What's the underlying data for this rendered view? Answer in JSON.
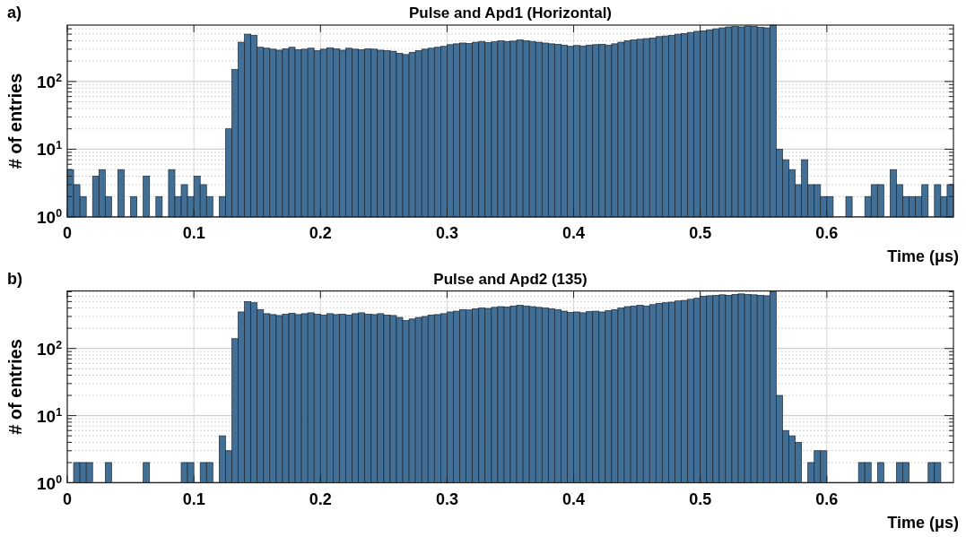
{
  "chart_data": [
    {
      "type": "histogram",
      "title": "Pulse and Apd1 (Horizontal)",
      "xlabel": "Time (μs)",
      "ylabel": "# of entries",
      "annotations": [
        "a)"
      ],
      "color": "#426f95",
      "log": true,
      "grid": true,
      "bins": [
        0,
        0.005,
        0.01,
        0.015,
        0.02,
        0.025,
        0.03,
        0.035,
        0.04,
        0.045,
        0.05,
        0.055,
        0.06,
        0.065,
        0.07,
        0.075,
        0.08,
        0.085,
        0.09,
        0.095,
        0.1,
        0.105,
        0.11,
        0.115,
        0.12,
        0.125,
        0.13,
        0.135,
        0.14,
        0.145,
        0.15,
        0.155,
        0.16,
        0.165,
        0.17,
        0.175,
        0.18,
        0.185,
        0.19,
        0.195,
        0.2,
        0.205,
        0.21,
        0.215,
        0.22,
        0.225,
        0.23,
        0.235,
        0.24,
        0.245,
        0.25,
        0.255,
        0.26,
        0.265,
        0.27,
        0.275,
        0.28,
        0.285,
        0.29,
        0.295,
        0.3,
        0.305,
        0.31,
        0.315,
        0.32,
        0.325,
        0.33,
        0.335,
        0.34,
        0.345,
        0.35,
        0.355,
        0.36,
        0.365,
        0.37,
        0.375,
        0.38,
        0.385,
        0.39,
        0.395,
        0.4,
        0.405,
        0.41,
        0.415,
        0.42,
        0.425,
        0.43,
        0.435,
        0.44,
        0.445,
        0.45,
        0.455,
        0.46,
        0.465,
        0.47,
        0.475,
        0.48,
        0.485,
        0.49,
        0.495,
        0.5,
        0.505,
        0.51,
        0.515,
        0.52,
        0.525,
        0.53,
        0.535,
        0.54,
        0.545,
        0.55,
        0.555,
        0.56,
        0.565,
        0.57,
        0.575,
        0.58,
        0.585,
        0.59,
        0.595,
        0.6,
        0.605,
        0.61,
        0.615,
        0.62,
        0.625,
        0.63,
        0.635,
        0.64,
        0.645,
        0.65,
        0.655,
        0.66,
        0.665,
        0.67,
        0.675,
        0.68,
        0.685,
        0.69,
        0.695,
        0.7
      ],
      "values": [
        5,
        3,
        2,
        null,
        4,
        5,
        2,
        null,
        5,
        null,
        2,
        null,
        4,
        null,
        2,
        null,
        5,
        2,
        3,
        2,
        4,
        3,
        2,
        null,
        2,
        20,
        150,
        380,
        500,
        480,
        320,
        310,
        300,
        290,
        305,
        320,
        295,
        300,
        310,
        285,
        300,
        315,
        305,
        290,
        310,
        300,
        295,
        305,
        300,
        290,
        285,
        280,
        260,
        250,
        270,
        285,
        300,
        310,
        320,
        330,
        350,
        360,
        370,
        365,
        380,
        390,
        375,
        385,
        400,
        390,
        395,
        410,
        400,
        390,
        380,
        370,
        360,
        355,
        345,
        330,
        340,
        335,
        345,
        350,
        355,
        345,
        360,
        380,
        400,
        410,
        420,
        430,
        440,
        460,
        470,
        480,
        500,
        510,
        530,
        550,
        560,
        580,
        600,
        620,
        640,
        650,
        640,
        660,
        650,
        630,
        620,
        680,
        10,
        7,
        5,
        3,
        7,
        3,
        3,
        2,
        2,
        null,
        null,
        2,
        null,
        null,
        2,
        3,
        3,
        null,
        5,
        3,
        2,
        2,
        2,
        3,
        null,
        3,
        2,
        3
      ],
      "xlim": [
        0,
        0.7
      ],
      "ylim": [
        1,
        680
      ],
      "xticks": [
        0,
        0.1,
        0.2,
        0.3,
        0.4,
        0.5,
        0.6
      ],
      "yticks": [
        {
          "value": 1,
          "label": "10$^{0}$"
        },
        {
          "value": 2,
          "label": null
        },
        {
          "value": 3,
          "label": null
        },
        {
          "value": 4,
          "label": null
        },
        {
          "value": 5,
          "label": null
        },
        {
          "value": 6,
          "label": null
        },
        {
          "value": 7,
          "label": null
        },
        {
          "value": 8,
          "label": null
        },
        {
          "value": 9,
          "label": null
        },
        {
          "value": 10,
          "label": "10$^{1}$"
        },
        {
          "value": 20,
          "label": null
        },
        {
          "value": 30,
          "label": null
        },
        {
          "value": 40,
          "label": null
        },
        {
          "value": 50,
          "label": null
        },
        {
          "value": 60,
          "label": null
        },
        {
          "value": 70,
          "label": null
        },
        {
          "value": 80,
          "label": null
        },
        {
          "value": 90,
          "label": null
        },
        {
          "value": 100,
          "label": "10$^{2}$"
        },
        {
          "value": 200,
          "label": null
        },
        {
          "value": 300,
          "label": null
        },
        {
          "value": 400,
          "label": null
        },
        {
          "value": 500,
          "label": null
        },
        {
          "value": 600,
          "label": null
        }
      ]
    },
    {
      "type": "histogram",
      "title": "Pulse and Apd2 (135)",
      "xlabel": "Time (μs)",
      "ylabel": "# of entries",
      "annotations": [
        "b)"
      ],
      "color": "#426f95",
      "log": true,
      "grid": true,
      "bins": [
        0,
        0.005,
        0.01,
        0.015,
        0.02,
        0.025,
        0.03,
        0.035,
        0.04,
        0.045,
        0.05,
        0.055,
        0.06,
        0.065,
        0.07,
        0.075,
        0.08,
        0.085,
        0.09,
        0.095,
        0.1,
        0.105,
        0.11,
        0.115,
        0.12,
        0.125,
        0.13,
        0.135,
        0.14,
        0.145,
        0.15,
        0.155,
        0.16,
        0.165,
        0.17,
        0.175,
        0.18,
        0.185,
        0.19,
        0.195,
        0.2,
        0.205,
        0.21,
        0.215,
        0.22,
        0.225,
        0.23,
        0.235,
        0.24,
        0.245,
        0.25,
        0.255,
        0.26,
        0.265,
        0.27,
        0.275,
        0.28,
        0.285,
        0.29,
        0.295,
        0.3,
        0.305,
        0.31,
        0.315,
        0.32,
        0.325,
        0.33,
        0.335,
        0.34,
        0.345,
        0.35,
        0.355,
        0.36,
        0.365,
        0.37,
        0.375,
        0.38,
        0.385,
        0.39,
        0.395,
        0.4,
        0.405,
        0.41,
        0.415,
        0.42,
        0.425,
        0.43,
        0.435,
        0.44,
        0.445,
        0.45,
        0.455,
        0.46,
        0.465,
        0.47,
        0.475,
        0.48,
        0.485,
        0.49,
        0.495,
        0.5,
        0.505,
        0.51,
        0.515,
        0.52,
        0.525,
        0.53,
        0.535,
        0.54,
        0.545,
        0.55,
        0.555,
        0.56,
        0.565,
        0.57,
        0.575,
        0.58,
        0.585,
        0.59,
        0.595,
        0.6,
        0.605,
        0.61,
        0.615,
        0.62,
        0.625,
        0.63,
        0.635,
        0.64,
        0.645,
        0.65,
        0.655,
        0.66,
        0.665,
        0.67,
        0.675,
        0.68,
        0.685,
        0.69,
        0.695,
        0.7
      ],
      "values": [
        null,
        2,
        2,
        2,
        null,
        null,
        2,
        null,
        null,
        null,
        null,
        null,
        2,
        null,
        null,
        null,
        null,
        null,
        2,
        2,
        null,
        2,
        2,
        null,
        5,
        3,
        140,
        350,
        500,
        480,
        380,
        330,
        320,
        310,
        325,
        335,
        320,
        330,
        340,
        325,
        315,
        330,
        320,
        325,
        315,
        330,
        340,
        325,
        320,
        330,
        315,
        310,
        290,
        260,
        275,
        290,
        300,
        315,
        320,
        330,
        350,
        360,
        380,
        375,
        390,
        400,
        395,
        410,
        420,
        415,
        430,
        440,
        430,
        420,
        410,
        400,
        390,
        380,
        360,
        345,
        350,
        340,
        355,
        360,
        350,
        365,
        380,
        400,
        420,
        430,
        440,
        430,
        450,
        470,
        480,
        490,
        510,
        520,
        540,
        560,
        600,
        610,
        620,
        630,
        620,
        640,
        650,
        640,
        630,
        620,
        610,
        700,
        20,
        6,
        5,
        4,
        null,
        2,
        3,
        3,
        null,
        null,
        null,
        null,
        null,
        2,
        2,
        null,
        2,
        null,
        null,
        2,
        2,
        null,
        null,
        null,
        2,
        2,
        null,
        null
      ],
      "xlim": [
        0,
        0.7
      ],
      "ylim": [
        1,
        720
      ],
      "xticks": [
        0,
        0.1,
        0.2,
        0.3,
        0.4,
        0.5,
        0.6
      ],
      "yticks": [
        {
          "value": 1,
          "label": "10$^{0}$"
        },
        {
          "value": 2,
          "label": null
        },
        {
          "value": 3,
          "label": null
        },
        {
          "value": 4,
          "label": null
        },
        {
          "value": 5,
          "label": null
        },
        {
          "value": 6,
          "label": null
        },
        {
          "value": 7,
          "label": null
        },
        {
          "value": 8,
          "label": null
        },
        {
          "value": 9,
          "label": null
        },
        {
          "value": 10,
          "label": "10$^{1}$"
        },
        {
          "value": 20,
          "label": null
        },
        {
          "value": 30,
          "label": null
        },
        {
          "value": 40,
          "label": null
        },
        {
          "value": 50,
          "label": null
        },
        {
          "value": 60,
          "label": null
        },
        {
          "value": 70,
          "label": null
        },
        {
          "value": 80,
          "label": null
        },
        {
          "value": 90,
          "label": null
        },
        {
          "value": 100,
          "label": "10$^{2}$"
        },
        {
          "value": 200,
          "label": null
        },
        {
          "value": 300,
          "label": null
        },
        {
          "value": 400,
          "label": null
        },
        {
          "value": 500,
          "label": null
        },
        {
          "value": 600,
          "label": null
        },
        {
          "value": 700,
          "label": null
        }
      ]
    }
  ]
}
